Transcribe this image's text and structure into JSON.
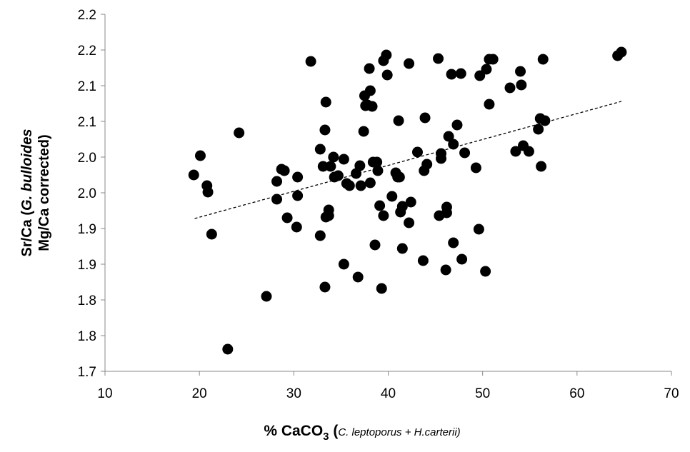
{
  "chart_data": {
    "type": "scatter",
    "title": "",
    "xlabel_parts": {
      "main": "% CaCO",
      "sub": "3",
      "paren_open": " (",
      "species": "C. leptoporus + H.carterii)"
    },
    "ylabel_parts": {
      "line1_prefix": "Sr/Ca (",
      "line1_species": "G. bulloides",
      "line2": "Mg/Ca corrected)"
    },
    "xlim": [
      10,
      70
    ],
    "ylim": [
      1.7,
      2.2
    ],
    "x_ticks": [
      10,
      20,
      30,
      40,
      50,
      60,
      70
    ],
    "x_tick_labels": [
      "10",
      "20",
      "30",
      "40",
      "50",
      "60",
      "70"
    ],
    "y_ticks": [
      1.7,
      1.75,
      1.8,
      1.85,
      1.9,
      1.95,
      2.0,
      2.05,
      2.1,
      2.15,
      2.2
    ],
    "y_tick_labels": [
      "1.7",
      "1.8",
      "1.8",
      "1.9",
      "1.9",
      "2.0",
      "2.0",
      "2.1",
      "2.1",
      "2.2",
      "2.2"
    ],
    "grid": false,
    "legend": "none",
    "marker_color": "#000000",
    "trendline": {
      "style": "dashed",
      "x": [
        19.5,
        64.7
      ],
      "y": [
        1.914,
        2.078
      ]
    },
    "points": [
      [
        19.4,
        1.975
      ],
      [
        20.1,
        2.002
      ],
      [
        20.8,
        1.96
      ],
      [
        20.9,
        1.951
      ],
      [
        21.3,
        1.892
      ],
      [
        24.2,
        2.034
      ],
      [
        23.0,
        1.731
      ],
      [
        27.1,
        1.805
      ],
      [
        28.2,
        1.966
      ],
      [
        28.2,
        1.941
      ],
      [
        28.7,
        1.983
      ],
      [
        29.0,
        1.981
      ],
      [
        29.3,
        1.915
      ],
      [
        30.4,
        1.972
      ],
      [
        30.4,
        1.946
      ],
      [
        30.3,
        1.902
      ],
      [
        31.8,
        2.134
      ],
      [
        32.8,
        2.011
      ],
      [
        32.8,
        1.89
      ],
      [
        33.1,
        1.987
      ],
      [
        33.3,
        2.038
      ],
      [
        33.4,
        2.077
      ],
      [
        33.3,
        1.818
      ],
      [
        33.4,
        1.916
      ],
      [
        33.7,
        1.926
      ],
      [
        33.7,
        1.918
      ],
      [
        33.9,
        1.987
      ],
      [
        34.2,
        2.0
      ],
      [
        34.3,
        1.972
      ],
      [
        34.7,
        1.974
      ],
      [
        35.3,
        1.997
      ],
      [
        35.3,
        1.85
      ],
      [
        35.6,
        1.963
      ],
      [
        35.9,
        1.96
      ],
      [
        36.6,
        1.977
      ],
      [
        36.8,
        1.832
      ],
      [
        37.0,
        1.988
      ],
      [
        37.1,
        1.96
      ],
      [
        37.4,
        2.036
      ],
      [
        37.5,
        2.086
      ],
      [
        37.6,
        2.072
      ],
      [
        37.8,
        2.073
      ],
      [
        38.0,
        2.124
      ],
      [
        38.1,
        2.093
      ],
      [
        38.1,
        1.964
      ],
      [
        38.3,
        2.071
      ],
      [
        38.4,
        1.993
      ],
      [
        38.6,
        1.877
      ],
      [
        38.8,
        1.993
      ],
      [
        38.9,
        1.981
      ],
      [
        39.1,
        1.932
      ],
      [
        39.3,
        1.816
      ],
      [
        39.5,
        2.135
      ],
      [
        39.5,
        1.918
      ],
      [
        39.8,
        2.143
      ],
      [
        39.9,
        2.115
      ],
      [
        40.4,
        1.945
      ],
      [
        40.8,
        1.978
      ],
      [
        41.0,
        1.972
      ],
      [
        41.1,
        2.051
      ],
      [
        41.2,
        1.972
      ],
      [
        41.3,
        1.923
      ],
      [
        41.5,
        1.931
      ],
      [
        41.5,
        1.872
      ],
      [
        42.2,
        2.131
      ],
      [
        42.2,
        1.908
      ],
      [
        42.4,
        1.937
      ],
      [
        43.1,
        2.007
      ],
      [
        43.7,
        1.855
      ],
      [
        43.8,
        1.981
      ],
      [
        43.9,
        2.055
      ],
      [
        44.1,
        1.99
      ],
      [
        45.3,
        2.138
      ],
      [
        45.4,
        1.918
      ],
      [
        45.6,
        1.998
      ],
      [
        45.6,
        2.005
      ],
      [
        46.1,
        1.842
      ],
      [
        46.2,
        1.922
      ],
      [
        46.2,
        1.93
      ],
      [
        46.4,
        2.029
      ],
      [
        46.7,
        2.116
      ],
      [
        46.9,
        1.88
      ],
      [
        46.9,
        2.018
      ],
      [
        47.3,
        2.045
      ],
      [
        47.7,
        2.117
      ],
      [
        47.8,
        1.857
      ],
      [
        48.1,
        2.006
      ],
      [
        49.3,
        1.985
      ],
      [
        49.6,
        1.899
      ],
      [
        49.7,
        2.114
      ],
      [
        50.3,
        1.84
      ],
      [
        50.4,
        2.123
      ],
      [
        50.7,
        2.137
      ],
      [
        50.7,
        2.074
      ],
      [
        51.1,
        2.137
      ],
      [
        52.9,
        2.097
      ],
      [
        53.5,
        2.008
      ],
      [
        54.0,
        2.12
      ],
      [
        54.1,
        2.101
      ],
      [
        54.3,
        2.016
      ],
      [
        54.9,
        2.008
      ],
      [
        55.9,
        2.039
      ],
      [
        56.1,
        2.054
      ],
      [
        56.2,
        1.987
      ],
      [
        56.6,
        2.051
      ],
      [
        56.4,
        2.137
      ],
      [
        64.3,
        2.142
      ],
      [
        64.7,
        2.147
      ]
    ]
  }
}
